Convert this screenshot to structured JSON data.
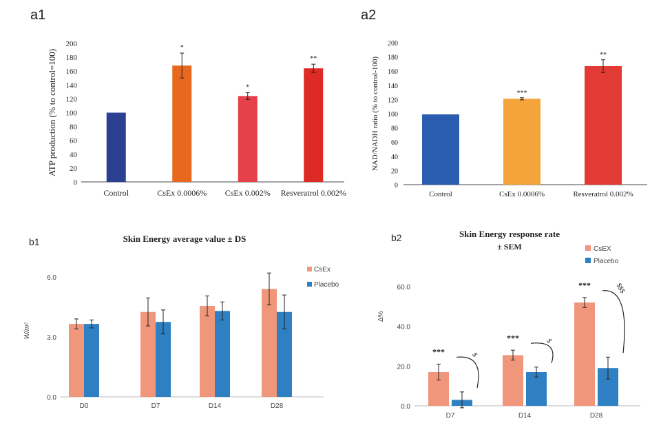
{
  "panels": {
    "a1": "a1",
    "a2": "a2",
    "b1": "b1",
    "b2": "b2"
  },
  "colors": {
    "dark_blue": "#2b3f93",
    "orange": "#e8681f",
    "red_light": "#e6404a",
    "red": "#de2a24",
    "blue_a2": "#2a5db0",
    "orange_a2": "#f4a43a",
    "red_a2": "#e23b36",
    "salmon": "#f0967a",
    "steel_blue": "#2f80c2"
  },
  "chart_data": [
    {
      "id": "a1",
      "type": "bar",
      "title": "",
      "ylabel": "ATP production (% to control=100)",
      "xlabel": "",
      "ylim": [
        0,
        200
      ],
      "yticks": [
        "0",
        "20",
        "40",
        "60",
        "80",
        "100",
        "120",
        "140",
        "160",
        "180",
        "200"
      ],
      "categories": [
        "Control",
        "CsEx 0.0006%",
        "CsEx  0.002%",
        "Resveratrol 0.002%"
      ],
      "values": [
        100,
        168,
        124,
        164
      ],
      "errors": [
        0.5,
        18,
        5,
        6
      ],
      "significance": [
        "",
        "*",
        "*",
        "**"
      ],
      "bar_colors": [
        "#2b3f93",
        "#e8681f",
        "#e6404a",
        "#de2a24"
      ]
    },
    {
      "id": "a2",
      "type": "bar",
      "title": "",
      "ylabel": "NAD/NADH ratio (% to control-100)",
      "xlabel": "",
      "ylim": [
        0,
        200
      ],
      "yticks": [
        "0",
        "20",
        "40",
        "60",
        "80",
        "100",
        "120",
        "140",
        "160",
        "180",
        "200"
      ],
      "categories": [
        "Control",
        "CsEx 0.0006%",
        "Resveratrol 0.002%"
      ],
      "values": [
        99,
        121,
        167
      ],
      "errors": [
        0.5,
        1.5,
        9
      ],
      "significance": [
        "",
        "***",
        "**"
      ],
      "bar_colors": [
        "#2a5db0",
        "#f4a43a",
        "#e23b36"
      ]
    },
    {
      "id": "b1",
      "type": "bar",
      "title": "Skin Energy average value ± DS",
      "ylabel": "W/m²",
      "xlabel": "",
      "ylim": [
        0,
        7.2
      ],
      "yticks": [
        "0.0",
        "3.0",
        "6.0"
      ],
      "ytick_values": [
        0,
        3,
        6
      ],
      "categories": [
        "D0",
        "D7",
        "D14",
        "D28"
      ],
      "series": [
        {
          "name": "CsEx",
          "values": [
            3.65,
            4.25,
            4.55,
            5.4
          ],
          "errors": [
            0.25,
            0.7,
            0.5,
            0.8
          ]
        },
        {
          "name": "Placebo",
          "values": [
            3.65,
            3.75,
            4.3,
            4.25
          ],
          "errors": [
            0.2,
            0.6,
            0.45,
            0.85
          ]
        }
      ],
      "legend_position": "right"
    },
    {
      "id": "b2",
      "type": "bar",
      "title": "Skin Energy response rate",
      "subtitle": "± SEM",
      "ylabel": "Δ%",
      "xlabel": "",
      "ylim": [
        0,
        70
      ],
      "yticks": [
        "0.0",
        "20.0",
        "40.0",
        "60.0"
      ],
      "ytick_values": [
        0,
        20,
        40,
        60
      ],
      "categories": [
        "D7",
        "D14",
        "D28"
      ],
      "series": [
        {
          "name": "CsEX",
          "values": [
            17,
            25.5,
            52
          ],
          "errors": [
            4,
            2.5,
            2.5
          ]
        },
        {
          "name": "Placebo",
          "values": [
            3,
            17,
            19
          ],
          "errors": [
            4,
            2.5,
            5.5
          ]
        }
      ],
      "annotations": [
        {
          "group": 0,
          "csex_label": "***",
          "placebo_label": "$"
        },
        {
          "group": 1,
          "csex_label": "***",
          "placebo_label": "$"
        },
        {
          "group": 2,
          "csex_label": "***",
          "placebo_label": "$$$"
        }
      ],
      "legend_position": "top-right"
    }
  ]
}
